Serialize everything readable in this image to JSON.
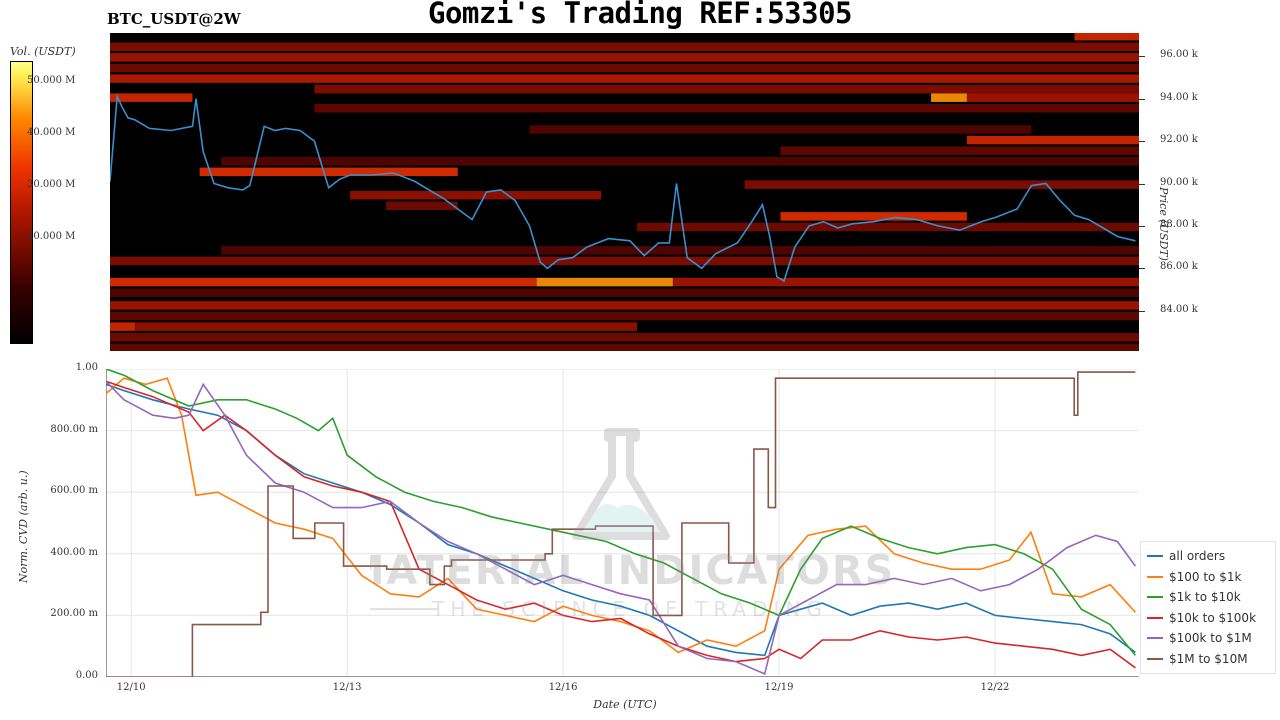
{
  "header": {
    "pair": "BTC_USDT@2W",
    "title": "Gomzi's Trading REF:53305"
  },
  "watermark": {
    "text": "MATERIAL INDICATORS",
    "subtext": "THE SCIENCE OF TRADING"
  },
  "colors": {
    "heatmap_low": "#000000",
    "heatmap_mid": "#cc1100",
    "heatmap_high": "#ffff60",
    "price_line": "#3a8fd0"
  },
  "chart_data": [
    {
      "type": "heatmap",
      "title": "",
      "colorbar_title": "Vol. (USDT)",
      "colorbar_ticks": [
        "50.000 M",
        "40.000 M",
        "30.000 M",
        "20.000 M"
      ],
      "colorbar_tick_values": [
        50,
        40,
        30,
        20
      ],
      "colorbar_range": [
        0,
        54
      ],
      "ylabel": "Price (USDT)",
      "price_ticks": [
        "96.00 k",
        "94.00 k",
        "92.00 k",
        "90.00 k",
        "88.00 k",
        "86.00 k",
        "84.00 k"
      ],
      "price_tick_values": [
        96,
        94,
        92,
        90,
        88,
        86,
        84
      ],
      "ylim": [
        82.1,
        97.1
      ],
      "x_range_days": [
        9.65,
        24.0
      ],
      "price_series": {
        "name": "price",
        "x": [
          9.65,
          9.75,
          9.82,
          9.9,
          10.0,
          10.2,
          10.5,
          10.8,
          10.85,
          10.95,
          11.1,
          11.3,
          11.5,
          11.6,
          11.8,
          11.95,
          12.1,
          12.3,
          12.5,
          12.7,
          12.85,
          13.0,
          13.3,
          13.6,
          13.9,
          14.1,
          14.3,
          14.5,
          14.7,
          14.9,
          15.1,
          15.3,
          15.5,
          15.65,
          15.75,
          15.9,
          16.1,
          16.3,
          16.6,
          16.9,
          17.1,
          17.3,
          17.45,
          17.55,
          17.7,
          17.9,
          18.1,
          18.4,
          18.6,
          18.75,
          18.85,
          18.95,
          19.05,
          19.2,
          19.4,
          19.6,
          19.8,
          20.0,
          20.3,
          20.6,
          20.9,
          21.2,
          21.5,
          21.8,
          22.0,
          22.3,
          22.5,
          22.7,
          22.9,
          23.1,
          23.3,
          23.5,
          23.7,
          23.95
        ],
        "y": [
          90.1,
          94.1,
          93.6,
          93.1,
          93.0,
          92.6,
          92.5,
          92.7,
          94.0,
          91.5,
          90.0,
          89.8,
          89.7,
          89.9,
          92.7,
          92.5,
          92.6,
          92.5,
          92.0,
          89.8,
          90.2,
          90.4,
          90.4,
          90.5,
          90.1,
          89.7,
          89.3,
          88.8,
          88.3,
          89.6,
          89.7,
          89.2,
          88.0,
          86.3,
          86.0,
          86.4,
          86.5,
          87.0,
          87.4,
          87.3,
          86.6,
          87.2,
          87.2,
          90.0,
          86.5,
          86.0,
          86.7,
          87.2,
          88.2,
          89.0,
          87.5,
          85.6,
          85.4,
          87.0,
          88.0,
          88.2,
          87.9,
          88.1,
          88.2,
          88.4,
          88.3,
          88.0,
          87.8,
          88.2,
          88.4,
          88.8,
          89.9,
          90.0,
          89.2,
          88.5,
          88.3,
          87.9,
          87.5,
          87.3
        ]
      },
      "heatmap_bands": [
        {
          "price": 96.9,
          "x": [
            23.1,
            24.0
          ],
          "vol": 30
        },
        {
          "price": 96.4,
          "x": [
            9.65,
            24.0
          ],
          "vol": 20
        },
        {
          "price": 95.9,
          "x": [
            9.65,
            24.0
          ],
          "vol": 24
        },
        {
          "price": 95.4,
          "x": [
            9.65,
            24.0
          ],
          "vol": 18
        },
        {
          "price": 94.9,
          "x": [
            9.65,
            24.0
          ],
          "vol": 26
        },
        {
          "price": 94.4,
          "x": [
            12.5,
            24.0
          ],
          "vol": 20
        },
        {
          "price": 94.0,
          "x": [
            9.65,
            10.8
          ],
          "vol": 30
        },
        {
          "price": 94.0,
          "x": [
            21.1,
            21.6
          ],
          "vol": 44
        },
        {
          "price": 94.0,
          "x": [
            21.6,
            24.0
          ],
          "vol": 24
        },
        {
          "price": 93.5,
          "x": [
            12.5,
            24.0
          ],
          "vol": 16
        },
        {
          "price": 92.5,
          "x": [
            15.5,
            22.5
          ],
          "vol": 14
        },
        {
          "price": 92.0,
          "x": [
            21.6,
            24.0
          ],
          "vol": 30
        },
        {
          "price": 91.5,
          "x": [
            19.0,
            24.0
          ],
          "vol": 16
        },
        {
          "price": 91.0,
          "x": [
            11.2,
            24.0
          ],
          "vol": 14
        },
        {
          "price": 90.5,
          "x": [
            10.9,
            14.5
          ],
          "vol": 32
        },
        {
          "price": 89.9,
          "x": [
            18.5,
            24.0
          ],
          "vol": 20
        },
        {
          "price": 89.4,
          "x": [
            13.0,
            16.5
          ],
          "vol": 22
        },
        {
          "price": 88.9,
          "x": [
            13.5,
            14.5
          ],
          "vol": 18
        },
        {
          "price": 88.4,
          "x": [
            19.0,
            21.6
          ],
          "vol": 32
        },
        {
          "price": 87.9,
          "x": [
            17.0,
            24.0
          ],
          "vol": 18
        },
        {
          "price": 86.8,
          "x": [
            11.2,
            24.0
          ],
          "vol": 14
        },
        {
          "price": 86.3,
          "x": [
            9.65,
            24.0
          ],
          "vol": 20
        },
        {
          "price": 85.3,
          "x": [
            9.65,
            15.6
          ],
          "vol": 32
        },
        {
          "price": 85.3,
          "x": [
            15.6,
            17.5
          ],
          "vol": 44
        },
        {
          "price": 85.3,
          "x": [
            17.5,
            24.0
          ],
          "vol": 24
        },
        {
          "price": 84.8,
          "x": [
            9.65,
            24.0
          ],
          "vol": 14
        },
        {
          "price": 84.2,
          "x": [
            9.65,
            24.0
          ],
          "vol": 24
        },
        {
          "price": 83.7,
          "x": [
            9.65,
            24.0
          ],
          "vol": 16
        },
        {
          "price": 83.2,
          "x": [
            9.65,
            10.0
          ],
          "vol": 30
        },
        {
          "price": 83.2,
          "x": [
            10.0,
            17.0
          ],
          "vol": 22
        },
        {
          "price": 82.7,
          "x": [
            9.65,
            24.0
          ],
          "vol": 18
        },
        {
          "price": 82.2,
          "x": [
            9.65,
            24.0
          ],
          "vol": 16
        }
      ]
    },
    {
      "type": "line",
      "title": "",
      "xlabel": "Date (UTC)",
      "ylabel": "Norm. CVD (arb. u.)",
      "ylim": [
        0,
        1
      ],
      "y_ticks": [
        "0.00",
        "200.00 m",
        "400.00 m",
        "600.00 m",
        "800.00 m",
        "1.00"
      ],
      "y_tick_values": [
        0,
        0.2,
        0.4,
        0.6,
        0.8,
        1.0
      ],
      "xlim": [
        9.65,
        24.0
      ],
      "x_ticks": [
        "12/10",
        "12/13",
        "12/16",
        "12/19",
        "12/22"
      ],
      "x_tick_values": [
        10,
        13,
        16,
        19,
        22
      ],
      "grid": true,
      "legend_position": "bottom-right",
      "series": [
        {
          "name": "all orders",
          "color": "#1f77b4",
          "x": [
            9.65,
            9.9,
            10.3,
            10.8,
            11.2,
            11.6,
            12.0,
            12.4,
            12.8,
            13.2,
            13.6,
            14.0,
            14.4,
            14.8,
            15.2,
            15.6,
            16.0,
            16.4,
            16.8,
            17.2,
            17.6,
            18.0,
            18.4,
            18.8,
            19.0,
            19.3,
            19.6,
            20.0,
            20.4,
            20.8,
            21.2,
            21.6,
            22.0,
            22.4,
            22.8,
            23.2,
            23.6,
            23.95
          ],
          "y": [
            0.95,
            0.93,
            0.9,
            0.87,
            0.85,
            0.8,
            0.72,
            0.66,
            0.63,
            0.6,
            0.56,
            0.5,
            0.43,
            0.4,
            0.36,
            0.32,
            0.28,
            0.25,
            0.23,
            0.2,
            0.15,
            0.1,
            0.08,
            0.07,
            0.2,
            0.22,
            0.24,
            0.2,
            0.23,
            0.24,
            0.22,
            0.24,
            0.2,
            0.19,
            0.18,
            0.17,
            0.14,
            0.08
          ]
        },
        {
          "name": "$100 to $1k",
          "color": "#ff7f0e",
          "x": [
            9.65,
            9.9,
            10.2,
            10.5,
            10.7,
            10.9,
            11.2,
            11.6,
            12.0,
            12.4,
            12.8,
            13.2,
            13.6,
            14.0,
            14.4,
            14.8,
            15.2,
            15.6,
            16.0,
            16.4,
            16.8,
            17.2,
            17.6,
            18.0,
            18.4,
            18.8,
            19.0,
            19.4,
            19.8,
            20.2,
            20.6,
            21.0,
            21.4,
            21.8,
            22.2,
            22.5,
            22.8,
            23.2,
            23.6,
            23.95
          ],
          "y": [
            0.92,
            0.97,
            0.95,
            0.97,
            0.85,
            0.59,
            0.6,
            0.55,
            0.5,
            0.48,
            0.45,
            0.33,
            0.27,
            0.26,
            0.32,
            0.22,
            0.2,
            0.18,
            0.23,
            0.2,
            0.18,
            0.15,
            0.08,
            0.12,
            0.1,
            0.15,
            0.35,
            0.46,
            0.48,
            0.49,
            0.4,
            0.37,
            0.35,
            0.35,
            0.38,
            0.47,
            0.27,
            0.26,
            0.3,
            0.21
          ]
        },
        {
          "name": "$1k to $10k",
          "color": "#2ca02c",
          "x": [
            9.65,
            9.9,
            10.3,
            10.8,
            11.2,
            11.6,
            12.0,
            12.3,
            12.6,
            12.8,
            13.0,
            13.4,
            13.8,
            14.2,
            14.6,
            15.0,
            15.4,
            15.8,
            16.2,
            16.6,
            17.0,
            17.4,
            17.8,
            18.2,
            18.6,
            19.0,
            19.3,
            19.6,
            20.0,
            20.4,
            20.8,
            21.2,
            21.6,
            22.0,
            22.4,
            22.8,
            23.2,
            23.6,
            23.95
          ],
          "y": [
            1.0,
            0.98,
            0.93,
            0.88,
            0.9,
            0.9,
            0.87,
            0.84,
            0.8,
            0.84,
            0.72,
            0.65,
            0.6,
            0.57,
            0.55,
            0.52,
            0.5,
            0.48,
            0.46,
            0.44,
            0.4,
            0.37,
            0.32,
            0.27,
            0.24,
            0.2,
            0.35,
            0.45,
            0.49,
            0.45,
            0.42,
            0.4,
            0.42,
            0.43,
            0.4,
            0.35,
            0.22,
            0.17,
            0.07
          ]
        },
        {
          "name": "$10k to $100k",
          "color": "#d62728",
          "x": [
            9.65,
            9.9,
            10.3,
            10.8,
            11.0,
            11.3,
            11.6,
            12.0,
            12.4,
            12.8,
            13.2,
            13.6,
            14.0,
            14.4,
            14.8,
            15.2,
            15.6,
            16.0,
            16.4,
            16.8,
            17.2,
            17.6,
            18.0,
            18.4,
            18.8,
            19.0,
            19.3,
            19.6,
            20.0,
            20.4,
            20.8,
            21.2,
            21.6,
            22.0,
            22.4,
            22.8,
            23.2,
            23.6,
            23.95
          ],
          "y": [
            0.96,
            0.94,
            0.91,
            0.86,
            0.8,
            0.85,
            0.8,
            0.72,
            0.65,
            0.62,
            0.6,
            0.57,
            0.35,
            0.3,
            0.25,
            0.22,
            0.24,
            0.2,
            0.18,
            0.19,
            0.14,
            0.1,
            0.07,
            0.05,
            0.06,
            0.09,
            0.06,
            0.12,
            0.12,
            0.15,
            0.13,
            0.12,
            0.13,
            0.11,
            0.1,
            0.09,
            0.07,
            0.09,
            0.03
          ]
        },
        {
          "name": "$100k to $1M",
          "color": "#9467bd",
          "x": [
            9.65,
            9.9,
            10.3,
            10.6,
            10.8,
            11.0,
            11.3,
            11.6,
            12.0,
            12.4,
            12.8,
            13.2,
            13.6,
            14.0,
            14.4,
            14.8,
            15.2,
            15.6,
            16.0,
            16.4,
            16.8,
            17.2,
            17.6,
            18.0,
            18.4,
            18.8,
            19.0,
            19.4,
            19.8,
            20.2,
            20.6,
            21.0,
            21.4,
            21.8,
            22.2,
            22.6,
            23.0,
            23.4,
            23.7,
            23.95
          ],
          "y": [
            0.96,
            0.9,
            0.85,
            0.84,
            0.85,
            0.95,
            0.85,
            0.72,
            0.63,
            0.6,
            0.55,
            0.55,
            0.57,
            0.5,
            0.44,
            0.4,
            0.35,
            0.3,
            0.33,
            0.3,
            0.27,
            0.25,
            0.1,
            0.06,
            0.05,
            0.01,
            0.2,
            0.25,
            0.3,
            0.3,
            0.32,
            0.3,
            0.32,
            0.28,
            0.3,
            0.35,
            0.42,
            0.46,
            0.44,
            0.36
          ]
        },
        {
          "name": "$1M to $10M",
          "color": "#8c564b",
          "step": true,
          "x": [
            9.65,
            10.85,
            11.8,
            11.9,
            12.25,
            12.45,
            12.55,
            12.95,
            13.05,
            13.45,
            13.55,
            14.15,
            14.35,
            14.45,
            15.05,
            15.75,
            15.85,
            16.15,
            16.45,
            17.25,
            17.45,
            17.65,
            18.3,
            18.65,
            18.75,
            18.85,
            18.95,
            19.0,
            19.1,
            23.1,
            23.15,
            23.25,
            23.95
          ],
          "y": [
            0.0,
            0.17,
            0.21,
            0.62,
            0.45,
            0.45,
            0.5,
            0.36,
            0.36,
            0.36,
            0.35,
            0.3,
            0.36,
            0.38,
            0.38,
            0.4,
            0.48,
            0.48,
            0.49,
            0.2,
            0.2,
            0.5,
            0.37,
            0.74,
            0.74,
            0.55,
            0.97,
            0.97,
            0.97,
            0.85,
            0.99,
            0.99,
            0.99
          ]
        }
      ]
    }
  ]
}
